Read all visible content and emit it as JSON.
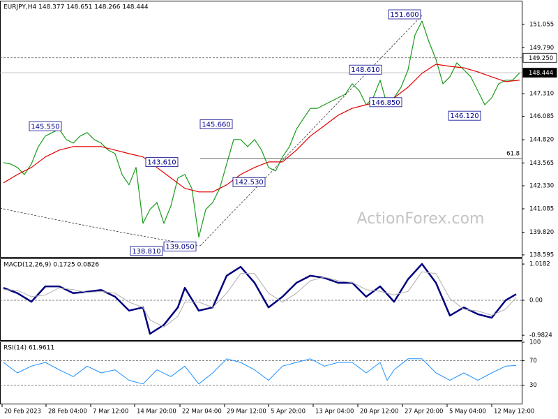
{
  "chart_data": [
    {
      "type": "line",
      "title": "EURJPY,H4 148.377 148.651 148.266 148.444",
      "watermark": "ActionForex.com",
      "xlim": [
        -0.5,
        74.3
      ],
      "ylim": [
        138.48,
        152.3
      ],
      "yticks": [
        151.055,
        {
          "value": 149.79,
          "label": "149.790"
        },
        {
          "value": 147.31,
          "label": "147.310"
        },
        146.085,
        {
          "value": 144.82,
          "label": "144.820"
        },
        143.565,
        {
          "value": 142.33,
          "label": "142.330"
        },
        141.085,
        {
          "value": 139.82,
          "label": "139.820"
        },
        138.595
      ],
      "series": [
        {
          "color": "#1a9c1a",
          "values": [
            143.58,
            143.51,
            143.32,
            142.94,
            143.51,
            144.45,
            145.02,
            145.21,
            145.39,
            144.83,
            144.64,
            145.02,
            145.21,
            144.83,
            144.64,
            144.26,
            144.07,
            142.94,
            142.38,
            143.32,
            140.3,
            141.05,
            141.43,
            140.3,
            141.24,
            142.75,
            142.94,
            142.19,
            139.55,
            141.05,
            141.43,
            142.19,
            143.51,
            144.83,
            144.83,
            144.45,
            144.83,
            144.26,
            143.32,
            143.13,
            143.89,
            144.45,
            145.39,
            145.96,
            146.52,
            146.52,
            146.71,
            146.9,
            147.09,
            147.28,
            147.85,
            147.47,
            146.71,
            147.09,
            148.04,
            146.71,
            147.09,
            147.66,
            148.6,
            150.49,
            151.24,
            150.11,
            149.17,
            147.85,
            148.22,
            148.98,
            148.6,
            148.22,
            147.47,
            146.71,
            147.09,
            147.85,
            148.04,
            148.04,
            148.44
          ]
        },
        {
          "color": "#e00000",
          "x": [
            0,
            2,
            4,
            6,
            8,
            10,
            12,
            14,
            16,
            18,
            20,
            22,
            24,
            26,
            28,
            30,
            32,
            34,
            36,
            38,
            40,
            42,
            44,
            46,
            48,
            50,
            52,
            54,
            56,
            58,
            60,
            62,
            64,
            66,
            68,
            70,
            72,
            74
          ],
          "values": [
            142.49,
            142.94,
            143.32,
            143.89,
            144.26,
            144.45,
            144.45,
            144.45,
            144.26,
            144.07,
            143.89,
            143.32,
            142.75,
            142.19,
            142.0,
            142.0,
            142.38,
            142.94,
            143.32,
            143.62,
            143.62,
            144.26,
            145.02,
            145.58,
            146.15,
            146.52,
            146.71,
            146.9,
            147.09,
            147.66,
            148.41,
            148.9,
            148.79,
            148.71,
            148.49,
            148.22,
            147.96,
            148.04
          ]
        }
      ],
      "annotations": [
        {
          "x": 6,
          "y": 145.55,
          "label": "145.550"
        },
        {
          "x": 22.7,
          "y": 143.61,
          "label": "143.610"
        },
        {
          "x": 30.5,
          "y": 145.66,
          "label": "145.660"
        },
        {
          "x": 35.2,
          "y": 142.53,
          "label": "142.530"
        },
        {
          "x": 20.5,
          "y": 138.81,
          "label": "138.810"
        },
        {
          "x": 25.3,
          "y": 139.05,
          "label": "139.050"
        },
        {
          "x": 51.9,
          "y": 148.61,
          "label": "148.610"
        },
        {
          "x": 54.8,
          "y": 146.85,
          "label": "146.850"
        },
        {
          "x": 57.5,
          "y": 151.6,
          "label": "151.600"
        },
        {
          "x": 66.1,
          "y": 146.12,
          "label": "146.120"
        }
      ],
      "levels": [
        {
          "value": 149.25,
          "label": "149.250",
          "style": "dashed"
        },
        {
          "value": 148.444,
          "label": "148.444",
          "style": "solid"
        }
      ],
      "fibo": {
        "x": 28.2,
        "value": 143.81,
        "label": "61.8"
      }
    },
    {
      "type": "line",
      "title": "MACD(12,26,9) 0.1725 0.0826",
      "xlim": [
        -0.5,
        74.3
      ],
      "ylim": [
        -1.137,
        1.157
      ],
      "yticks": [
        1.0182,
        {
          "value": 0,
          "label": "0.00"
        },
        -0.9824
      ],
      "levels": [
        0
      ],
      "series": [
        {
          "color": "#000080",
          "width": 2.5,
          "x": [
            0,
            2,
            4,
            6,
            8,
            10,
            12,
            14,
            16,
            18,
            20,
            21,
            23,
            25,
            26,
            28,
            30,
            32,
            34,
            36,
            38,
            40,
            42,
            44,
            46,
            48,
            50,
            52,
            54,
            56,
            58,
            60,
            62,
            64,
            66,
            68,
            70,
            72,
            73.5
          ],
          "values": [
            0.35,
            0.2,
            -0.04,
            0.39,
            0.39,
            0.2,
            0.24,
            0.29,
            0.1,
            -0.29,
            -0.2,
            -0.94,
            -0.69,
            -0.2,
            0.35,
            -0.29,
            -0.2,
            0.69,
            0.94,
            0.49,
            -0.2,
            0.1,
            0.49,
            0.69,
            0.63,
            0.49,
            0.49,
            0.1,
            0.39,
            -0.04,
            0.59,
            1.02,
            0.49,
            -0.43,
            -0.2,
            -0.39,
            -0.49,
            0.0,
            0.17
          ]
        },
        {
          "color": "#b0b0b0",
          "width": 1,
          "x": [
            0,
            2,
            4,
            6,
            8,
            10,
            12,
            14,
            16,
            18,
            20,
            21,
            23,
            25,
            26,
            28,
            30,
            32,
            34,
            36,
            38,
            40,
            42,
            44,
            46,
            48,
            50,
            52,
            54,
            56,
            58,
            60,
            62,
            64,
            66,
            68,
            70,
            72,
            73.5
          ],
          "values": [
            0.3,
            0.28,
            0.1,
            0.15,
            0.35,
            0.3,
            0.22,
            0.25,
            0.2,
            -0.05,
            -0.2,
            -0.55,
            -0.75,
            -0.45,
            -0.05,
            -0.05,
            -0.2,
            0.2,
            0.75,
            0.75,
            0.2,
            -0.05,
            0.2,
            0.55,
            0.65,
            0.55,
            0.5,
            0.3,
            0.25,
            0.15,
            0.25,
            0.8,
            0.75,
            0.05,
            -0.25,
            -0.3,
            -0.42,
            -0.25,
            0.08
          ]
        }
      ]
    },
    {
      "type": "line",
      "title": "RSI(14) 61.9611",
      "xlim": [
        -0.5,
        74.3
      ],
      "ylim": [
        0,
        100
      ],
      "yticks": [
        100,
        70,
        30
      ],
      "levels": [
        70,
        30
      ],
      "xticks": [
        {
          "value": -0.2,
          "label": "20 Feb 2023"
        },
        {
          "value": 6.1,
          "label": "28 Feb 04:00"
        },
        {
          "value": 12.5,
          "label": "7 Mar 12:00"
        },
        {
          "value": 18.8,
          "label": "14 Mar 20:00"
        },
        {
          "value": 25.3,
          "label": "22 Mar 04:00"
        },
        {
          "value": 31.7,
          "label": "29 Mar 12:00"
        },
        {
          "value": 38,
          "label": "5 Apr 20:00"
        },
        {
          "value": 44.4,
          "label": "13 Apr 04:00"
        },
        {
          "value": 50.8,
          "label": "20 Apr 12:00"
        },
        {
          "value": 57.2,
          "label": "27 Apr 20:00"
        },
        {
          "value": 63.6,
          "label": "5 May 04:00"
        },
        {
          "value": 70,
          "label": "12 May 12:00"
        }
      ],
      "series": [
        {
          "color": "#1e90ff",
          "width": 1,
          "x": [
            0,
            2,
            4,
            6,
            8,
            10,
            12,
            14,
            16,
            18,
            20,
            22,
            24,
            26,
            28,
            30,
            32,
            34,
            36,
            38,
            40,
            42,
            44,
            46,
            48,
            50,
            52,
            54,
            55,
            56,
            58,
            60,
            62,
            64,
            66,
            68,
            70,
            72,
            73.5
          ],
          "values": [
            67,
            50,
            61,
            67,
            55,
            44,
            61,
            50,
            55,
            38,
            32,
            55,
            44,
            61,
            32,
            50,
            73,
            67,
            55,
            38,
            61,
            67,
            73,
            61,
            67,
            67,
            50,
            67,
            38,
            55,
            73,
            73,
            50,
            38,
            50,
            38,
            50,
            61,
            62
          ]
        }
      ]
    }
  ]
}
